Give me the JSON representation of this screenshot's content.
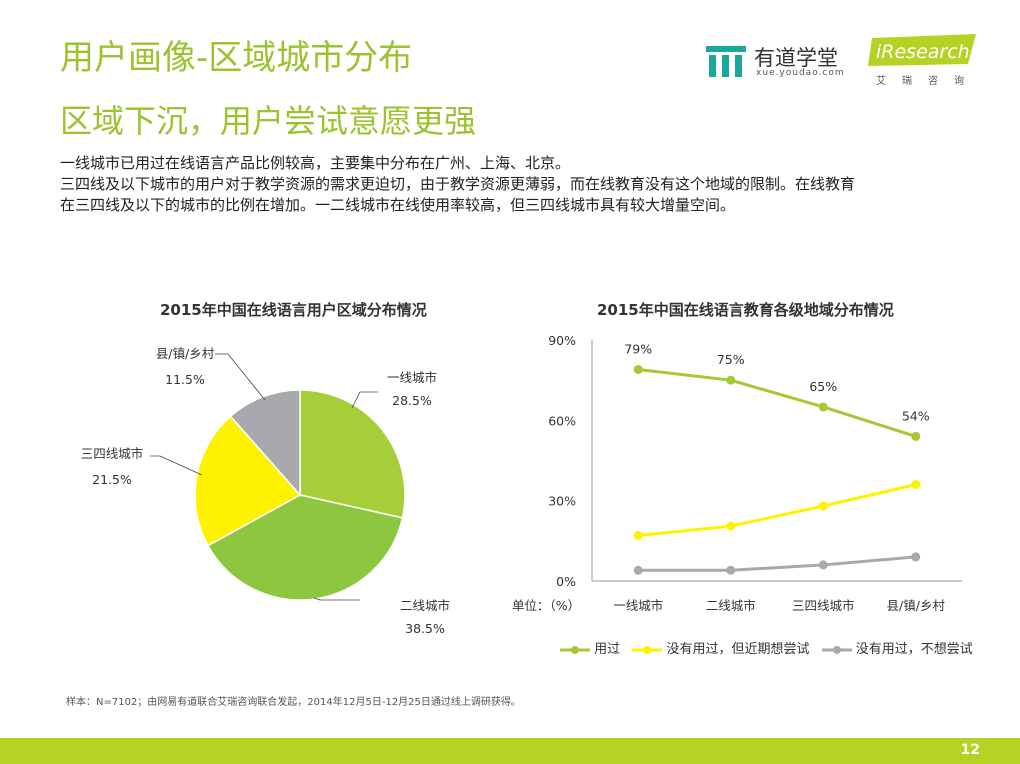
{
  "header": {
    "title": "用户画像-区域城市分布",
    "subtitle": "区域下沉，用户尝试意愿更强",
    "description": [
      "一线城市已用过在线语言产品比例较高，主要集中分布在广州、上海、北京。",
      "三四线及以下城市的用户对于教学资源的需求更迫切，由于教学资源更薄弱，而在线教育没有这个地域的限制。在线教育",
      "在三四线及以下的城市的比例在增加。一二线城市在线使用率较高，但三四线城市具有较大增量空间。"
    ]
  },
  "logos": {
    "youdao_name": "有道学堂",
    "youdao_url": "xue.youdao.com",
    "iresearch_name": "iResearch",
    "iresearch_sub": "艾瑞咨询"
  },
  "chart_data": [
    {
      "type": "pie",
      "title": "2015年中国在线语言用户区域分布情况",
      "categories": [
        "一线城市",
        "二线城市",
        "三四线城市",
        "县/镇/乡村"
      ],
      "values": [
        28.5,
        38.5,
        21.5,
        11.5
      ],
      "value_labels": [
        "28.5%",
        "38.5%",
        "21.5%",
        "11.5%"
      ],
      "colors": [
        "#a6ce39",
        "#8dc63f",
        "#fff200",
        "#a7a9ac"
      ]
    },
    {
      "type": "line",
      "title": "2015年中国在线语言教育各级地域分布情况",
      "categories": [
        "一线城市",
        "二线城市",
        "三四线城市",
        "县/镇/乡村"
      ],
      "ylim": [
        0,
        90
      ],
      "yticks": [
        0,
        30,
        60,
        90
      ],
      "ytick_labels": [
        "0%",
        "30%",
        "60%",
        "90%"
      ],
      "unit_label": "单位：（%）",
      "series": [
        {
          "name": "用过",
          "values": [
            79,
            75,
            65,
            54
          ],
          "labels": [
            "79%",
            "75%",
            "65%",
            "54%"
          ],
          "color": "#a6c833"
        },
        {
          "name": "没有用过，但近期想尝试",
          "values": [
            17,
            20.5,
            28,
            36
          ],
          "color": "#fff200"
        },
        {
          "name": "没有用过，不想尝试",
          "values": [
            4,
            4,
            6,
            9
          ],
          "color": "#a7a9ac"
        }
      ],
      "legend_position": "bottom"
    }
  ],
  "footnote": "样本：N=7102；由网易有道联合艾瑞咨询联合发起，2014年12月5日-12月25日通过线上调研获得。",
  "page_number": "12"
}
